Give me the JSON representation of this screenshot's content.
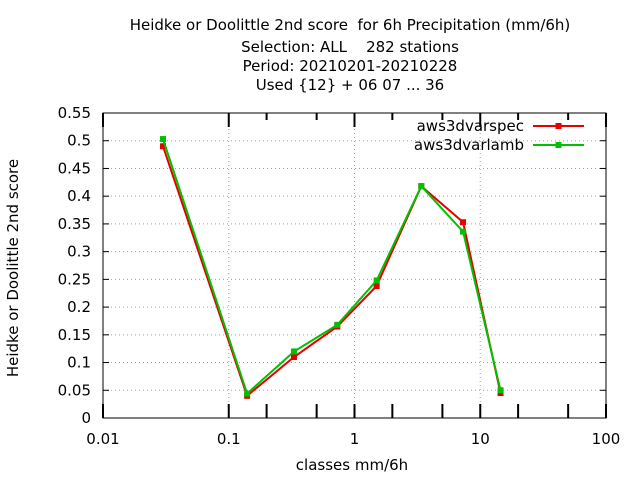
{
  "chart_data": {
    "type": "line",
    "title_lines": [
      "Heidke or Doolittle 2nd score  for 6h Precipitation (mm/6h)",
      "Selection: ALL    282 stations",
      "Period: 20210201-20210228",
      "Used {12} + 06 07 ... 36"
    ],
    "xlabel": "classes mm/6h",
    "ylabel": "Heidke or Doolittle 2nd score",
    "x_scale": "log",
    "xlim": [
      0.01,
      100
    ],
    "ylim": [
      0,
      0.55
    ],
    "x_ticks": [
      0.01,
      0.1,
      1,
      10,
      100
    ],
    "x_tick_labels": [
      "0.01",
      "0.1",
      "1",
      "10",
      "100"
    ],
    "x_minor_ticks": [
      0.2,
      0.5,
      2,
      5,
      20,
      50
    ],
    "y_ticks": [
      0,
      0.05,
      0.1,
      0.15,
      0.2,
      0.25,
      0.3,
      0.35,
      0.4,
      0.45,
      0.5,
      0.55
    ],
    "y_tick_labels": [
      "0",
      "0.05",
      "0.1",
      "0.15",
      "0.2",
      "0.25",
      "0.3",
      "0.35",
      "0.4",
      "0.45",
      "0.5",
      "0.55"
    ],
    "grid": true,
    "legend_position": "top-right",
    "series": [
      {
        "name": "aws3dvarspec",
        "color": "#e60000",
        "x": [
          0.03,
          0.14,
          0.33,
          0.73,
          1.5,
          3.4,
          7.3,
          14.5
        ],
        "y": [
          0.49,
          0.04,
          0.11,
          0.165,
          0.238,
          0.418,
          0.353,
          0.045
        ]
      },
      {
        "name": "aws3dvarlamb",
        "color": "#00c000",
        "x": [
          0.03,
          0.14,
          0.33,
          0.73,
          1.5,
          3.4,
          7.3,
          14.5
        ],
        "y": [
          0.503,
          0.044,
          0.12,
          0.168,
          0.248,
          0.418,
          0.336,
          0.05
        ]
      }
    ]
  }
}
